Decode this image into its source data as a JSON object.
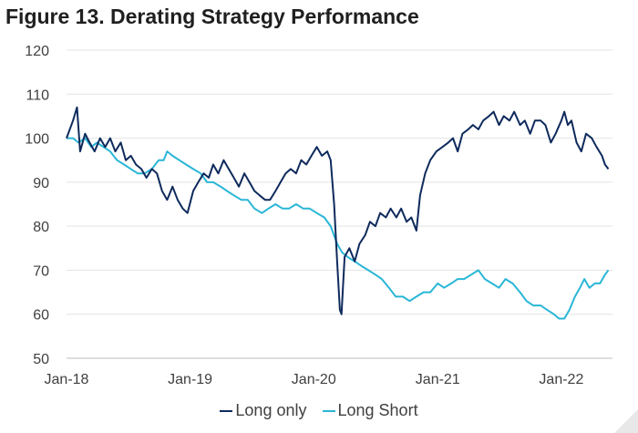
{
  "title": "Figure 13. Derating Strategy Performance",
  "chart_data": {
    "type": "line",
    "title": "Figure 13. Derating Strategy Performance",
    "xlabel": "",
    "ylabel": "",
    "ylim": [
      50,
      120
    ],
    "yticks": [
      50,
      60,
      70,
      80,
      90,
      100,
      110,
      120
    ],
    "xticks": [
      "Jan-18",
      "Jan-19",
      "Jan-20",
      "Jan-21",
      "Jan-22"
    ],
    "grid": "horizontal",
    "legend_position": "bottom",
    "series": [
      {
        "name": "Long only",
        "color": "#0e2a5c",
        "points": [
          [
            "2018-01-01",
            100
          ],
          [
            "2018-01-20",
            104
          ],
          [
            "2018-02-01",
            107
          ],
          [
            "2018-02-10",
            97
          ],
          [
            "2018-02-25",
            101
          ],
          [
            "2018-03-10",
            99
          ],
          [
            "2018-03-25",
            97
          ],
          [
            "2018-04-10",
            100
          ],
          [
            "2018-04-25",
            98
          ],
          [
            "2018-05-10",
            100
          ],
          [
            "2018-05-25",
            97
          ],
          [
            "2018-06-10",
            99
          ],
          [
            "2018-06-25",
            95
          ],
          [
            "2018-07-10",
            96
          ],
          [
            "2018-07-25",
            94
          ],
          [
            "2018-08-10",
            93
          ],
          [
            "2018-08-25",
            91
          ],
          [
            "2018-09-10",
            93
          ],
          [
            "2018-09-25",
            92
          ],
          [
            "2018-10-10",
            88
          ],
          [
            "2018-10-25",
            86
          ],
          [
            "2018-11-10",
            89
          ],
          [
            "2018-11-25",
            86
          ],
          [
            "2018-12-10",
            84
          ],
          [
            "2018-12-24",
            83
          ],
          [
            "2019-01-10",
            88
          ],
          [
            "2019-01-25",
            90
          ],
          [
            "2019-02-10",
            92
          ],
          [
            "2019-02-25",
            91
          ],
          [
            "2019-03-10",
            94
          ],
          [
            "2019-03-25",
            92
          ],
          [
            "2019-04-10",
            95
          ],
          [
            "2019-04-25",
            93
          ],
          [
            "2019-05-10",
            91
          ],
          [
            "2019-05-25",
            89
          ],
          [
            "2019-06-10",
            92
          ],
          [
            "2019-06-25",
            90
          ],
          [
            "2019-07-10",
            88
          ],
          [
            "2019-07-25",
            87
          ],
          [
            "2019-08-10",
            86
          ],
          [
            "2019-08-25",
            86
          ],
          [
            "2019-09-10",
            88
          ],
          [
            "2019-09-25",
            90
          ],
          [
            "2019-10-10",
            92
          ],
          [
            "2019-10-25",
            93
          ],
          [
            "2019-11-10",
            92
          ],
          [
            "2019-11-25",
            95
          ],
          [
            "2019-12-10",
            94
          ],
          [
            "2019-12-25",
            96
          ],
          [
            "2020-01-10",
            98
          ],
          [
            "2020-01-25",
            96
          ],
          [
            "2020-02-10",
            97
          ],
          [
            "2020-02-20",
            95
          ],
          [
            "2020-03-01",
            85
          ],
          [
            "2020-03-10",
            72
          ],
          [
            "2020-03-18",
            61
          ],
          [
            "2020-03-23",
            60
          ],
          [
            "2020-04-01",
            73
          ],
          [
            "2020-04-15",
            75
          ],
          [
            "2020-05-01",
            72
          ],
          [
            "2020-05-15",
            76
          ],
          [
            "2020-06-01",
            78
          ],
          [
            "2020-06-15",
            81
          ],
          [
            "2020-07-01",
            80
          ],
          [
            "2020-07-15",
            83
          ],
          [
            "2020-08-01",
            82
          ],
          [
            "2020-08-15",
            84
          ],
          [
            "2020-09-01",
            82
          ],
          [
            "2020-09-15",
            84
          ],
          [
            "2020-10-01",
            81
          ],
          [
            "2020-10-15",
            82
          ],
          [
            "2020-10-30",
            79
          ],
          [
            "2020-11-10",
            87
          ],
          [
            "2020-11-25",
            92
          ],
          [
            "2020-12-10",
            95
          ],
          [
            "2020-12-28",
            97
          ],
          [
            "2021-01-15",
            98
          ],
          [
            "2021-02-01",
            99
          ],
          [
            "2021-02-15",
            100
          ],
          [
            "2021-03-01",
            97
          ],
          [
            "2021-03-15",
            101
          ],
          [
            "2021-04-01",
            102
          ],
          [
            "2021-04-15",
            103
          ],
          [
            "2021-05-01",
            102
          ],
          [
            "2021-05-15",
            104
          ],
          [
            "2021-06-01",
            105
          ],
          [
            "2021-06-15",
            106
          ],
          [
            "2021-07-01",
            103
          ],
          [
            "2021-07-15",
            105
          ],
          [
            "2021-08-01",
            104
          ],
          [
            "2021-08-15",
            106
          ],
          [
            "2021-09-01",
            103
          ],
          [
            "2021-09-15",
            104
          ],
          [
            "2021-10-01",
            101
          ],
          [
            "2021-10-15",
            104
          ],
          [
            "2021-11-01",
            104
          ],
          [
            "2021-11-15",
            103
          ],
          [
            "2021-12-01",
            99
          ],
          [
            "2021-12-15",
            101
          ],
          [
            "2022-01-01",
            104
          ],
          [
            "2022-01-10",
            106
          ],
          [
            "2022-01-20",
            103
          ],
          [
            "2022-01-31",
            104
          ],
          [
            "2022-02-15",
            99
          ],
          [
            "2022-03-01",
            97
          ],
          [
            "2022-03-15",
            101
          ],
          [
            "2022-04-01",
            100
          ],
          [
            "2022-04-15",
            98
          ],
          [
            "2022-05-01",
            96
          ],
          [
            "2022-05-10",
            94
          ],
          [
            "2022-05-20",
            93
          ]
        ]
      },
      {
        "name": "Long Short",
        "color": "#29b6d6",
        "points": [
          [
            "2018-01-01",
            100
          ],
          [
            "2018-01-20",
            100
          ],
          [
            "2018-02-05",
            99
          ],
          [
            "2018-02-25",
            100
          ],
          [
            "2018-03-15",
            98
          ],
          [
            "2018-04-01",
            99
          ],
          [
            "2018-04-20",
            98
          ],
          [
            "2018-05-10",
            97
          ],
          [
            "2018-05-30",
            95
          ],
          [
            "2018-06-20",
            94
          ],
          [
            "2018-07-10",
            93
          ],
          [
            "2018-07-30",
            92
          ],
          [
            "2018-08-20",
            92
          ],
          [
            "2018-09-10",
            93
          ],
          [
            "2018-09-30",
            95
          ],
          [
            "2018-10-15",
            95
          ],
          [
            "2018-10-25",
            97
          ],
          [
            "2018-11-10",
            96
          ],
          [
            "2018-11-30",
            95
          ],
          [
            "2018-12-20",
            94
          ],
          [
            "2019-01-10",
            93
          ],
          [
            "2019-02-01",
            92
          ],
          [
            "2019-02-20",
            90
          ],
          [
            "2019-03-10",
            90
          ],
          [
            "2019-04-01",
            89
          ],
          [
            "2019-04-20",
            88
          ],
          [
            "2019-05-10",
            87
          ],
          [
            "2019-06-01",
            86
          ],
          [
            "2019-06-20",
            86
          ],
          [
            "2019-07-10",
            84
          ],
          [
            "2019-08-01",
            83
          ],
          [
            "2019-08-20",
            84
          ],
          [
            "2019-09-10",
            85
          ],
          [
            "2019-10-01",
            84
          ],
          [
            "2019-10-20",
            84
          ],
          [
            "2019-11-10",
            85
          ],
          [
            "2019-12-01",
            84
          ],
          [
            "2019-12-20",
            84
          ],
          [
            "2020-01-10",
            83
          ],
          [
            "2020-02-01",
            82
          ],
          [
            "2020-02-20",
            80
          ],
          [
            "2020-03-10",
            76
          ],
          [
            "2020-03-25",
            74
          ],
          [
            "2020-04-10",
            73
          ],
          [
            "2020-05-01",
            72
          ],
          [
            "2020-05-20",
            71
          ],
          [
            "2020-06-10",
            70
          ],
          [
            "2020-07-01",
            69
          ],
          [
            "2020-07-20",
            68
          ],
          [
            "2020-08-10",
            66
          ],
          [
            "2020-08-30",
            64
          ],
          [
            "2020-09-20",
            64
          ],
          [
            "2020-10-10",
            63
          ],
          [
            "2020-10-30",
            64
          ],
          [
            "2020-11-20",
            65
          ],
          [
            "2020-12-10",
            65
          ],
          [
            "2021-01-01",
            67
          ],
          [
            "2021-01-20",
            66
          ],
          [
            "2021-02-10",
            67
          ],
          [
            "2021-03-01",
            68
          ],
          [
            "2021-03-20",
            68
          ],
          [
            "2021-04-10",
            69
          ],
          [
            "2021-05-01",
            70
          ],
          [
            "2021-05-20",
            68
          ],
          [
            "2021-06-10",
            67
          ],
          [
            "2021-07-01",
            66
          ],
          [
            "2021-07-20",
            68
          ],
          [
            "2021-08-10",
            67
          ],
          [
            "2021-09-01",
            65
          ],
          [
            "2021-09-20",
            63
          ],
          [
            "2021-10-10",
            62
          ],
          [
            "2021-11-01",
            62
          ],
          [
            "2021-11-20",
            61
          ],
          [
            "2021-12-10",
            60
          ],
          [
            "2021-12-25",
            59
          ],
          [
            "2022-01-10",
            59
          ],
          [
            "2022-01-25",
            61
          ],
          [
            "2022-02-10",
            64
          ],
          [
            "2022-02-25",
            66
          ],
          [
            "2022-03-10",
            68
          ],
          [
            "2022-03-25",
            66
          ],
          [
            "2022-04-10",
            67
          ],
          [
            "2022-04-25",
            67
          ],
          [
            "2022-05-10",
            69
          ],
          [
            "2022-05-20",
            70
          ]
        ]
      }
    ]
  }
}
